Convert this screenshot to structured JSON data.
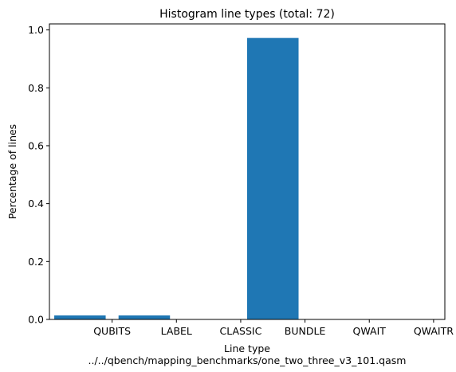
{
  "chart_data": {
    "type": "bar",
    "title": "Histogram line types (total: 72)",
    "xlabel": "Line type",
    "xlabel_sub": "../../qbench/mapping_benchmarks/one_two_three_v3_101.qasm",
    "ylabel": "Percentage of lines",
    "bars": [
      {
        "x": -0.5,
        "value": 0.0139
      },
      {
        "x": 0.5,
        "value": 0.0139
      },
      {
        "x": 1.5,
        "value": 0.0
      },
      {
        "x": 2.5,
        "value": 0.9722
      },
      {
        "x": 3.5,
        "value": 0.0
      },
      {
        "x": 4.5,
        "value": 0.0
      }
    ],
    "categories": [
      "QUBITS",
      "LABEL",
      "CLASSIC",
      "BUNDLE",
      "QWAIT",
      "QWAITR"
    ],
    "category_positions": [
      0,
      1,
      2,
      3,
      4,
      5
    ],
    "xlim": [
      -0.975,
      5.175
    ],
    "ylim": [
      0.0,
      1.0208
    ],
    "yticks": [
      0.0,
      0.2,
      0.4,
      0.6,
      0.8,
      1.0
    ],
    "ytick_labels": [
      "0.0",
      "0.2",
      "0.4",
      "0.6",
      "0.8",
      "1.0"
    ],
    "bar_color": "#1f77b4",
    "grid": false,
    "legend": "none"
  }
}
